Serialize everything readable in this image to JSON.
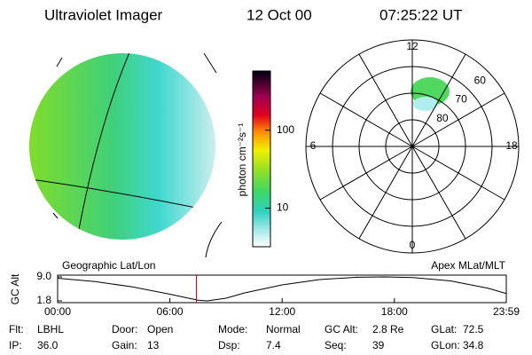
{
  "header": {
    "title": "Ultraviolet Imager",
    "date": "12 Oct 00",
    "time": "07:25:22 UT"
  },
  "colorbar": {
    "label": "photon cm⁻²s⁻¹",
    "scale": "log",
    "lim": [
      3.2,
      575
    ],
    "ticks": [
      10,
      100
    ]
  },
  "geo_label": "Geographic Lat/Lon",
  "polar": {
    "label": "Apex MLat/MLT",
    "mlt": [
      {
        "value": 12,
        "label": "12"
      },
      {
        "value": 18,
        "label": "18"
      },
      {
        "value": 6,
        "label": "6"
      },
      {
        "value": 0,
        "label": "0"
      }
    ],
    "lat": [
      60,
      70,
      80
    ]
  },
  "altitude": {
    "axis_label": "GC Alt",
    "xlim": [
      0,
      23.98
    ],
    "ylim": [
      1.8,
      9.0
    ],
    "yticks": [
      {
        "value": 9.0,
        "label": "9.0"
      },
      {
        "value": 1.8,
        "label": "1.8"
      }
    ],
    "xticks": [
      {
        "value": 0,
        "label": "00:00"
      },
      {
        "value": 6,
        "label": "06:00"
      },
      {
        "value": 12,
        "label": "12:00"
      },
      {
        "value": 18,
        "label": "18:00"
      },
      {
        "value": 23.98,
        "label": "23:59"
      }
    ],
    "x": [
      0,
      2,
      4,
      6,
      7.5,
      8,
      9,
      10,
      12,
      14,
      16,
      17.5,
      19,
      21,
      23,
      23.98
    ],
    "values": [
      8.6,
      7.6,
      6.0,
      3.8,
      2.0,
      1.8,
      2.6,
      4.2,
      6.6,
      8.2,
      8.9,
      9.0,
      8.8,
      7.8,
      5.6,
      4.0
    ],
    "marker": 7.42
  },
  "status": [
    [
      {
        "label": "Flt:",
        "value": "LBHL"
      },
      {
        "label": "Door:",
        "value": "Open"
      },
      {
        "label": "Mode:",
        "value": "Normal"
      },
      {
        "label": "GC Alt:",
        "value": "2.8 Re"
      },
      {
        "label": "GLat:",
        "value": "72.5"
      }
    ],
    [
      {
        "label": "IP:",
        "value": "36.0"
      },
      {
        "label": "Gain:",
        "value": "13"
      },
      {
        "label": "Dsp:",
        "value": "7.4"
      },
      {
        "label": "Seq:",
        "value": "39"
      },
      {
        "label": "GLon:",
        "value": "34.8"
      }
    ]
  ]
}
